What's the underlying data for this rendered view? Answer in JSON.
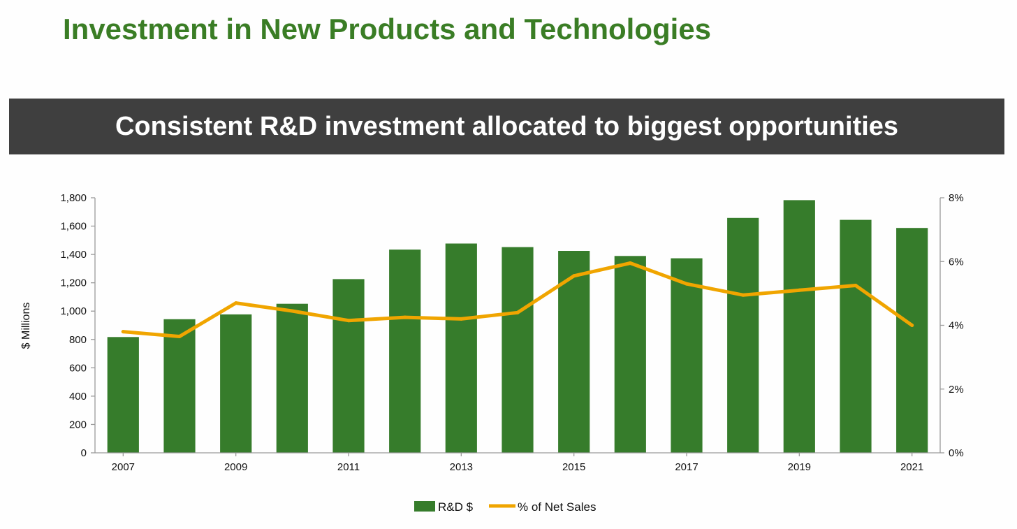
{
  "header": {
    "title": "Investment in New Products and Technologies",
    "banner": "Consistent R&D investment allocated to biggest opportunities"
  },
  "colors": {
    "title": "#3a7d25",
    "banner_bg": "#3f3f3f",
    "bar": "#367c2b",
    "line": "#f0a500"
  },
  "chart_data": {
    "type": "bar",
    "categories": [
      "2007",
      "2008",
      "2009",
      "2010",
      "2011",
      "2012",
      "2013",
      "2014",
      "2015",
      "2016",
      "2017",
      "2018",
      "2019",
      "2020",
      "2021"
    ],
    "x_tick_labels": [
      "2007",
      "",
      "2009",
      "",
      "2011",
      "",
      "2013",
      "",
      "2015",
      "",
      "2017",
      "",
      "2019",
      "",
      "2021"
    ],
    "series": [
      {
        "name": "R&D $",
        "type": "bar",
        "axis": "left",
        "values": [
          817,
          943,
          977,
          1052,
          1226,
          1434,
          1477,
          1452,
          1425,
          1389,
          1373,
          1658,
          1783,
          1644,
          1587
        ]
      },
      {
        "name": "% of Net Sales",
        "type": "line",
        "axis": "right",
        "values": [
          3.8,
          3.65,
          4.7,
          4.45,
          4.15,
          4.25,
          4.2,
          4.4,
          5.55,
          5.95,
          5.3,
          4.95,
          5.1,
          5.25,
          4.0
        ]
      }
    ],
    "title": "Consistent R&D investment allocated to biggest opportunities",
    "xlabel": "",
    "ylabel": "$ Millions",
    "ylim": [
      0,
      1800
    ],
    "y_ticks": [
      "0",
      "200",
      "400",
      "600",
      "800",
      "1,000",
      "1,200",
      "1,400",
      "1,600",
      "1,800"
    ],
    "y2lim": [
      0,
      8
    ],
    "y2_ticks": [
      "0%",
      "2%",
      "4%",
      "6%",
      "8%"
    ],
    "grid": false,
    "legend": "bottom-center"
  }
}
